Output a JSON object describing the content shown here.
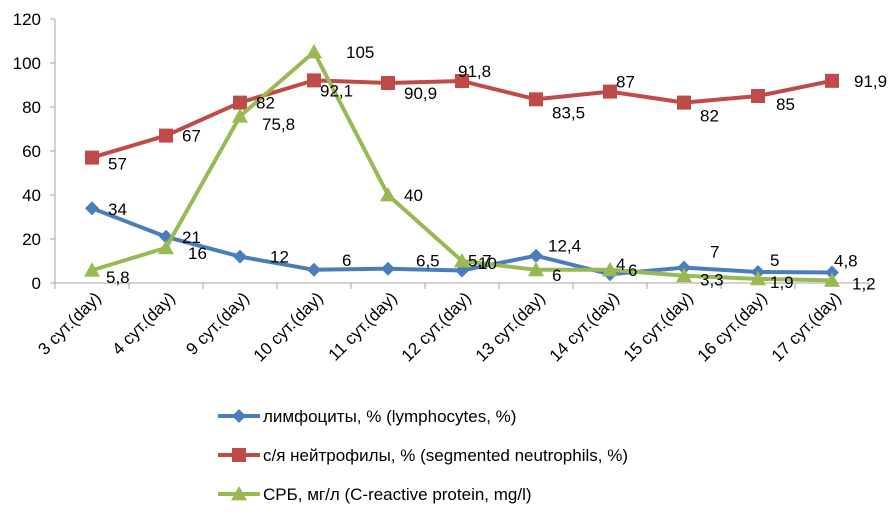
{
  "chart_data": {
    "type": "line",
    "title": "",
    "xlabel": "",
    "ylabel": "",
    "ylim": [
      0,
      120
    ],
    "yticks": [
      0,
      20,
      40,
      60,
      80,
      100,
      120
    ],
    "grid": false,
    "legend_position": "bottom",
    "categories": [
      "3 сут.(day)",
      "4 сут.(day)",
      "9 сут.(day)",
      "10 сут.(day)",
      "11 сут.(day)",
      "12 сут.(day)",
      "13 сут.(day)",
      "14 сут.(day)",
      "15 сут.(day)",
      "16 сут.(day)",
      "17 сут.(day)"
    ],
    "series": [
      {
        "name": "лимфоциты, % (lymphocytes, %)",
        "marker": "diamond",
        "color": "#4a7ebb",
        "values": [
          34,
          21,
          12,
          6,
          6.5,
          5.7,
          12.4,
          4,
          7,
          5,
          4.8
        ],
        "labels": [
          "34",
          "21",
          "12",
          "6",
          "6,5",
          "5,7",
          "12,4",
          "4",
          "7",
          "5",
          "4,8"
        ]
      },
      {
        "name": "с/я нейтрофилы, % (segmented neutrophils, %)",
        "marker": "square",
        "color": "#be4b48",
        "values": [
          57,
          67,
          82,
          92.1,
          90.9,
          91.8,
          83.5,
          87,
          82,
          85,
          91.9
        ],
        "labels": [
          "57",
          "67",
          "82",
          "92,1",
          "90,9",
          "91,8",
          "83,5",
          "87",
          "82",
          "85",
          "91,9"
        ]
      },
      {
        "name": "СРБ, мг/л (C-reactive protein, mg/l)",
        "marker": "triangle",
        "color": "#98b954",
        "values": [
          5.8,
          16,
          75.8,
          105,
          40,
          10,
          6,
          6,
          3.3,
          1.9,
          1.2
        ],
        "labels": [
          "5,8",
          "16",
          "75,8",
          "105",
          "40",
          "10",
          "6",
          "6",
          "3,3",
          "1,9",
          "1,2"
        ]
      }
    ]
  }
}
